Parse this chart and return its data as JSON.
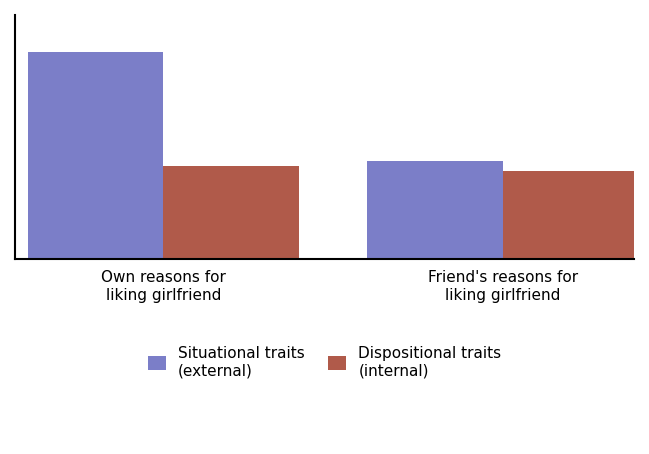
{
  "categories": [
    "Own reasons for\nliking girlfriend",
    "Friend's reasons for\nliking girlfriend"
  ],
  "situational": [
    85,
    40
  ],
  "dispositional": [
    38,
    36
  ],
  "situational_color": "#7b7ec8",
  "dispositional_color": "#b05a4a",
  "legend_labels": [
    "Situational traits\n(external)",
    "Dispositional traits\n(internal)"
  ],
  "bar_width": 0.32,
  "group_centers": [
    0.35,
    1.15
  ],
  "ylim": [
    0,
    100
  ],
  "background_color": "#ffffff",
  "spine_color": "#000000",
  "tick_label_fontsize": 11,
  "legend_fontsize": 11
}
